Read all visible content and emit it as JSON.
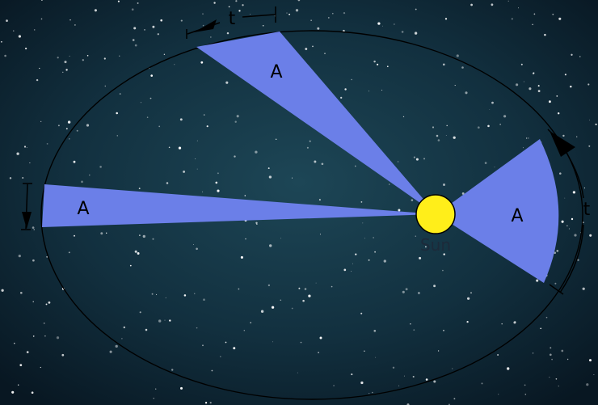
{
  "diagram": {
    "area_label": "A",
    "time_label": "t",
    "sun_label": "Sun"
  },
  "colors": {
    "background": "#0b1e2c",
    "sector_fill": "#6b7fe8",
    "sun_fill": "#ffee1a",
    "orbit_stroke": "#000000"
  }
}
